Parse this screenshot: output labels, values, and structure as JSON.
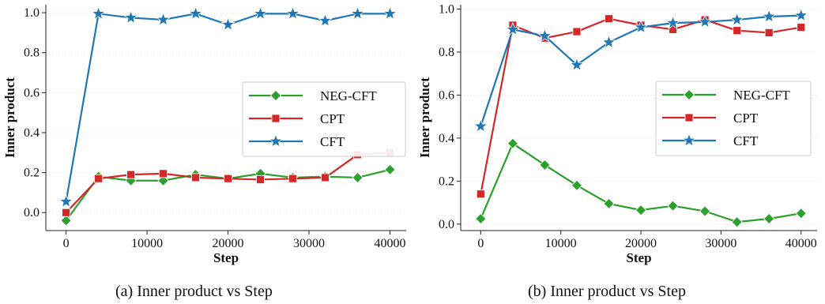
{
  "colors": {
    "neg_cft": "#2ca02c",
    "cpt": "#d62728",
    "cft": "#1f77b4",
    "axis": "#222222",
    "grid": "#e6e6e6"
  },
  "chart_data": [
    {
      "type": "line",
      "caption": "(a) Inner product vs Step",
      "xlabel": "Step",
      "ylabel": "Inner product",
      "xlim": [
        -2500,
        42000
      ],
      "ylim": [
        -0.09,
        1.04
      ],
      "xticks": [
        0,
        10000,
        20000,
        30000,
        40000
      ],
      "xtick_labels": [
        "0",
        "10000",
        "20000",
        "30000",
        "40000"
      ],
      "yticks": [
        0.0,
        0.2,
        0.4,
        0.6,
        0.8,
        1.0
      ],
      "ytick_labels": [
        "0.0",
        "0.2",
        "0.4",
        "0.6",
        "0.8",
        "1.0"
      ],
      "grid": "horizontal dotted",
      "legend_position": "right",
      "x": [
        0,
        4000,
        8000,
        12000,
        16000,
        20000,
        24000,
        28000,
        32000,
        36000,
        40000
      ],
      "series": [
        {
          "name": "NEG-CFT",
          "marker": "diamond",
          "color_key": "neg_cft",
          "values": [
            -0.04,
            0.18,
            0.16,
            0.16,
            0.19,
            0.17,
            0.195,
            0.175,
            0.18,
            0.175,
            0.215
          ]
        },
        {
          "name": "CPT",
          "marker": "square",
          "color_key": "cpt",
          "values": [
            0.0,
            0.17,
            0.19,
            0.195,
            0.175,
            0.17,
            0.165,
            0.17,
            0.175,
            0.29,
            0.3
          ]
        },
        {
          "name": "CFT",
          "marker": "star",
          "color_key": "cft",
          "values": [
            0.055,
            0.995,
            0.975,
            0.965,
            0.995,
            0.94,
            0.995,
            0.995,
            0.96,
            0.995,
            0.995
          ]
        }
      ]
    },
    {
      "type": "line",
      "caption": "(b) Inner product vs Step",
      "xlabel": "Step",
      "ylabel": "Inner product",
      "xlim": [
        -2500,
        42000
      ],
      "ylim": [
        -0.03,
        1.02
      ],
      "xticks": [
        0,
        10000,
        20000,
        30000,
        40000
      ],
      "xtick_labels": [
        "0",
        "10000",
        "20000",
        "30000",
        "40000"
      ],
      "yticks": [
        0.0,
        0.2,
        0.4,
        0.6,
        0.8,
        1.0
      ],
      "ytick_labels": [
        "0.0",
        "0.2",
        "0.4",
        "0.6",
        "0.8",
        "1.0"
      ],
      "grid": "horizontal dotted",
      "legend_position": "right",
      "x": [
        0,
        4000,
        8000,
        12000,
        16000,
        20000,
        24000,
        28000,
        32000,
        36000,
        40000
      ],
      "series": [
        {
          "name": "NEG-CFT",
          "marker": "diamond",
          "color_key": "neg_cft",
          "values": [
            0.025,
            0.375,
            0.275,
            0.18,
            0.095,
            0.065,
            0.085,
            0.06,
            0.01,
            0.025,
            0.05
          ]
        },
        {
          "name": "CPT",
          "marker": "square",
          "color_key": "cpt",
          "values": [
            0.14,
            0.925,
            0.865,
            0.895,
            0.955,
            0.925,
            0.905,
            0.95,
            0.9,
            0.89,
            0.915
          ]
        },
        {
          "name": "CFT",
          "marker": "star",
          "color_key": "cft",
          "values": [
            0.455,
            0.905,
            0.875,
            0.74,
            0.845,
            0.915,
            0.935,
            0.94,
            0.95,
            0.965,
            0.97
          ]
        }
      ]
    }
  ]
}
